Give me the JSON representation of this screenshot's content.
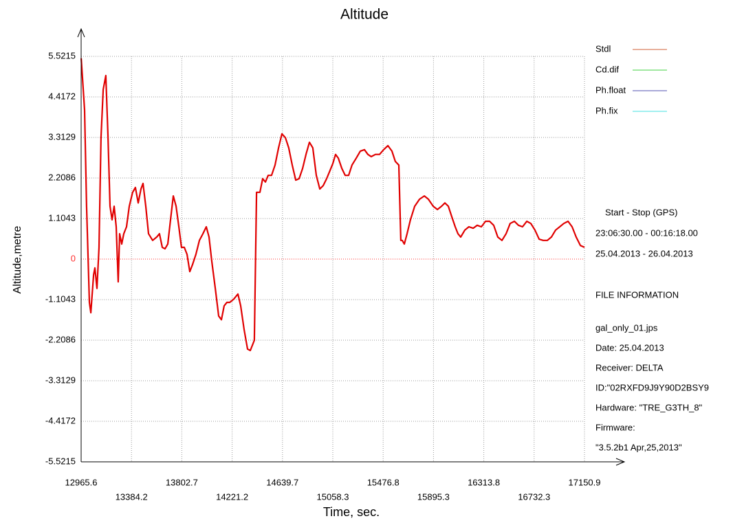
{
  "chart_data": {
    "type": "line",
    "title": "Altitude",
    "xlabel": "Time, sec.",
    "ylabel": "Altitude,metre",
    "xlim": [
      12965.6,
      17150.9
    ],
    "xticks": [
      12965.6,
      13384.2,
      13802.7,
      14221.2,
      14639.7,
      15058.3,
      15476.8,
      15895.3,
      16313.8,
      16732.3,
      17150.9
    ],
    "ylim": [
      -5.5215,
      5.5215
    ],
    "yticks": [
      -5.5215,
      -4.4172,
      -3.3129,
      -2.2086,
      -1.1043,
      0,
      1.1043,
      2.2086,
      3.3129,
      4.4172,
      5.5215
    ],
    "grid": true,
    "zero_line_color": "#ff3030",
    "color": "#e00000",
    "legend": [
      {
        "name": "Stdl",
        "color": "#d0603a"
      },
      {
        "name": "Cd.dif",
        "color": "#40d040"
      },
      {
        "name": "Ph.float",
        "color": "#5050b0"
      },
      {
        "name": "Ph.fix",
        "color": "#40e0e0"
      }
    ],
    "info_lines": [
      "Start  -  Stop  (GPS)",
      "23:06:30.00 - 00:16:18.00",
      "25.04.2013 - 26.04.2013",
      "FILE INFORMATION",
      "gal_only_01.jps",
      "Date: 25.04.2013",
      "Receiver: DELTA",
      "ID:\"02RXFD9J9Y90D2BSY9",
      "Hardware: \"TRE_G3TH_8\"",
      "Firmware:",
      "\"3.5.2b1 Apr,25,2013\""
    ],
    "x": [
      12966,
      12994,
      13011,
      13034,
      13046,
      13069,
      13080,
      13097,
      13114,
      13131,
      13149,
      13171,
      13189,
      13206,
      13223,
      13240,
      13257,
      13274,
      13286,
      13303,
      13320,
      13343,
      13366,
      13394,
      13417,
      13440,
      13463,
      13480,
      13503,
      13526,
      13560,
      13594,
      13617,
      13640,
      13663,
      13686,
      13709,
      13732,
      13755,
      13778,
      13800,
      13823,
      13846,
      13869,
      13892,
      13920,
      13949,
      13978,
      14006,
      14029,
      14052,
      14081,
      14109,
      14132,
      14155,
      14178,
      14201,
      14235,
      14269,
      14292,
      14321,
      14349,
      14372,
      14406,
      14424,
      14452,
      14475,
      14498,
      14521,
      14549,
      14578,
      14607,
      14635,
      14664,
      14692,
      14721,
      14750,
      14778,
      14807,
      14835,
      14864,
      14892,
      14921,
      14950,
      14978,
      15007,
      15035,
      15058,
      15081,
      15104,
      15133,
      15161,
      15190,
      15218,
      15253,
      15287,
      15321,
      15350,
      15378,
      15413,
      15447,
      15481,
      15516,
      15550,
      15578,
      15607,
      15624,
      15636,
      15653,
      15676,
      15704,
      15739,
      15779,
      15819,
      15853,
      15893,
      15928,
      15962,
      15990,
      16019,
      16047,
      16076,
      16099,
      16122,
      16156,
      16190,
      16225,
      16259,
      16293,
      16328,
      16362,
      16396,
      16430,
      16465,
      16499,
      16533,
      16568,
      16602,
      16636,
      16671,
      16705,
      16739,
      16774,
      16808,
      16842,
      16876,
      16911,
      16945,
      16979,
      17014,
      17048,
      17082,
      17117,
      17151
    ],
    "values": [
      5.47,
      4.06,
      1.44,
      -1.18,
      -1.46,
      -0.43,
      -0.24,
      -0.8,
      0.32,
      3.31,
      4.62,
      5.0,
      3.31,
      1.44,
      1.07,
      1.44,
      0.88,
      -0.62,
      0.69,
      0.41,
      0.69,
      0.88,
      1.44,
      1.82,
      1.95,
      1.53,
      1.91,
      2.06,
      1.44,
      0.69,
      0.51,
      0.6,
      0.69,
      0.32,
      0.28,
      0.41,
      1.07,
      1.72,
      1.44,
      0.88,
      0.32,
      0.32,
      0.13,
      -0.34,
      -0.15,
      0.13,
      0.51,
      0.69,
      0.88,
      0.6,
      -0.06,
      -0.8,
      -1.55,
      -1.65,
      -1.27,
      -1.18,
      -1.18,
      -1.09,
      -0.95,
      -1.27,
      -1.93,
      -2.45,
      -2.49,
      -2.21,
      1.82,
      1.82,
      2.19,
      2.1,
      2.28,
      2.28,
      2.56,
      3.03,
      3.41,
      3.31,
      3.03,
      2.56,
      2.15,
      2.19,
      2.47,
      2.85,
      3.18,
      3.03,
      2.28,
      1.91,
      2.0,
      2.19,
      2.41,
      2.6,
      2.85,
      2.75,
      2.47,
      2.28,
      2.28,
      2.56,
      2.75,
      2.94,
      2.98,
      2.85,
      2.79,
      2.85,
      2.85,
      2.98,
      3.09,
      2.94,
      2.66,
      2.56,
      0.51,
      0.51,
      0.41,
      0.69,
      1.07,
      1.44,
      1.63,
      1.72,
      1.63,
      1.44,
      1.35,
      1.44,
      1.53,
      1.44,
      1.16,
      0.88,
      0.69,
      0.6,
      0.79,
      0.88,
      0.84,
      0.92,
      0.88,
      1.03,
      1.03,
      0.92,
      0.6,
      0.51,
      0.69,
      0.97,
      1.03,
      0.92,
      0.88,
      1.03,
      0.97,
      0.79,
      0.54,
      0.51,
      0.51,
      0.6,
      0.79,
      0.88,
      0.97,
      1.03,
      0.88,
      0.6,
      0.37,
      0.32
    ]
  }
}
